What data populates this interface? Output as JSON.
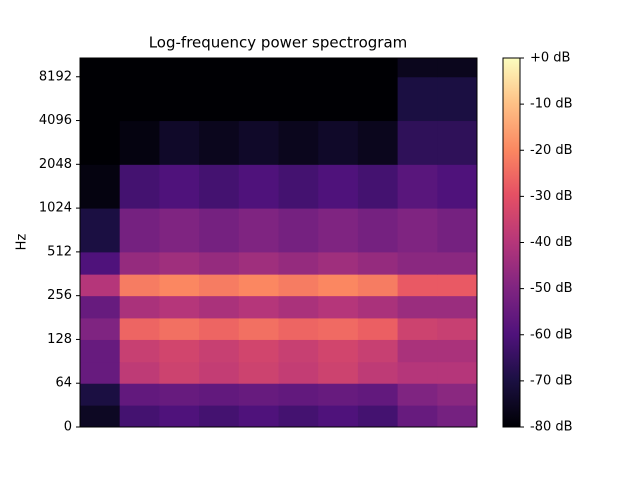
{
  "chart_data": {
    "type": "heatmap",
    "title": "Log-frequency power spectrogram",
    "ylabel": "Hz",
    "yscale": "symlog",
    "linthresh": 64,
    "ylim": [
      0,
      11025
    ],
    "yticks": [
      0,
      64,
      128,
      256,
      512,
      1024,
      2048,
      4096,
      8192
    ],
    "colormap": "magma",
    "clim": [
      -80,
      0
    ],
    "cticks": [
      {
        "value": 0,
        "label": "+0 dB"
      },
      {
        "value": -10,
        "label": "-10 dB"
      },
      {
        "value": -20,
        "label": "-20 dB"
      },
      {
        "value": -30,
        "label": "-30 dB"
      },
      {
        "value": -40,
        "label": "-40 dB"
      },
      {
        "value": -50,
        "label": "-50 dB"
      },
      {
        "value": -60,
        "label": "-60 dB"
      },
      {
        "value": -70,
        "label": "-70 dB"
      },
      {
        "value": -80,
        "label": "-80 dB"
      }
    ],
    "freq_edges": [
      0,
      32,
      64,
      90,
      128,
      180,
      256,
      360,
      512,
      1024,
      2048,
      4096,
      8192,
      11025
    ],
    "z": [
      [
        -75,
        -62,
        -60,
        -62,
        -60,
        -62,
        -60,
        -62,
        -55,
        -52
      ],
      [
        -70,
        -56,
        -55,
        -56,
        -55,
        -56,
        -55,
        -56,
        -50,
        -48
      ],
      [
        -55,
        -38,
        -35,
        -37,
        -35,
        -37,
        -35,
        -38,
        -40,
        -40
      ],
      [
        -55,
        -36,
        -34,
        -36,
        -34,
        -36,
        -34,
        -36,
        -42,
        -42
      ],
      [
        -50,
        -26,
        -24,
        -26,
        -24,
        -26,
        -25,
        -27,
        -35,
        -36
      ],
      [
        -55,
        -42,
        -40,
        -42,
        -40,
        -42,
        -40,
        -42,
        -45,
        -45
      ],
      [
        -40,
        -22,
        -20,
        -22,
        -20,
        -22,
        -20,
        -22,
        -28,
        -28
      ],
      [
        -60,
        -46,
        -44,
        -46,
        -44,
        -46,
        -44,
        -46,
        -48,
        -48
      ],
      [
        -70,
        -52,
        -50,
        -52,
        -50,
        -52,
        -50,
        -52,
        -50,
        -52
      ],
      [
        -78,
        -62,
        -60,
        -62,
        -60,
        -62,
        -60,
        -62,
        -58,
        -60
      ],
      [
        -80,
        -78,
        -74,
        -76,
        -74,
        -76,
        -74,
        -76,
        -66,
        -66
      ],
      [
        -80,
        -80,
        -80,
        -80,
        -80,
        -80,
        -80,
        -80,
        -70,
        -70
      ],
      [
        -80,
        -80,
        -80,
        -80,
        -80,
        -80,
        -80,
        -80,
        -76,
        -76
      ]
    ]
  }
}
